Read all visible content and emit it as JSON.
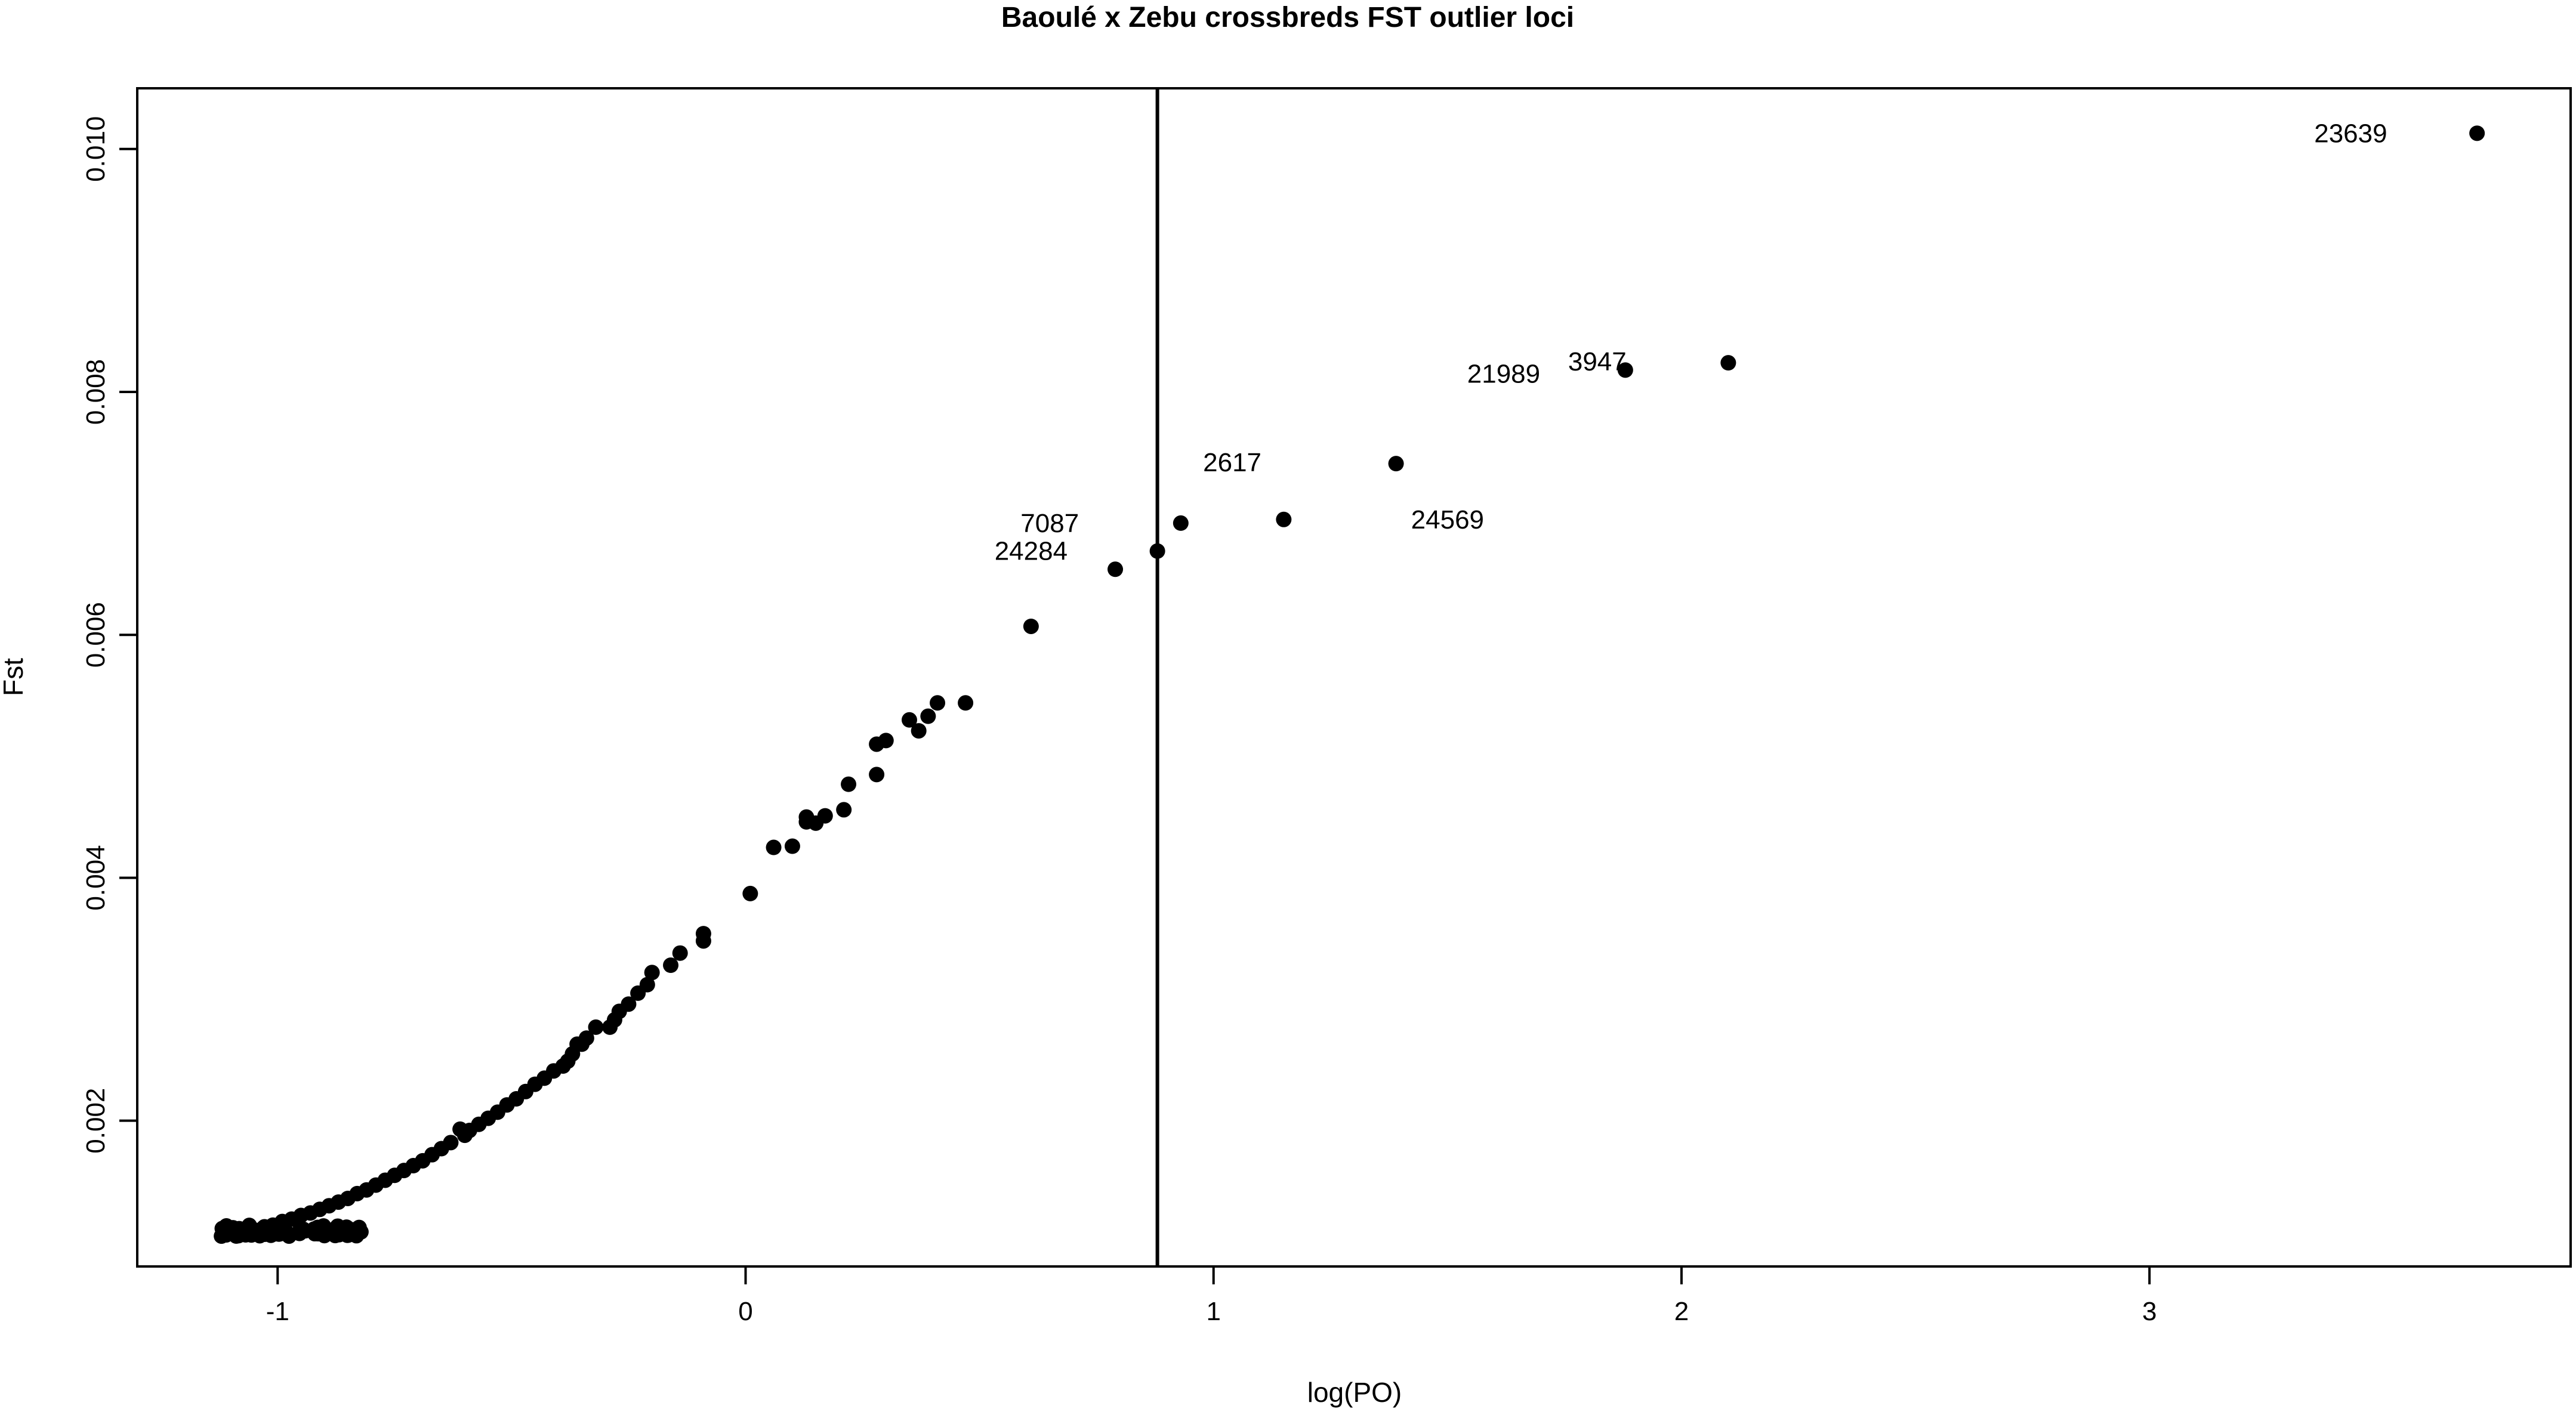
{
  "chart_data": {
    "type": "scatter",
    "title": "Baoulé x Zebu crossbreds FST outlier loci",
    "xlabel": "log(PO)",
    "ylabel": "Fst",
    "xlim": [
      -1.3,
      3.9
    ],
    "ylim": [
      0.0008,
      0.0105
    ],
    "xticks": [
      -1,
      0,
      1,
      2,
      3
    ],
    "xtick_labels": [
      "-1",
      "0",
      "1",
      "2",
      "3"
    ],
    "yticks": [
      0.002,
      0.004,
      0.006,
      0.008,
      0.01
    ],
    "ytick_labels": [
      "0.002",
      "0.004",
      "0.006",
      "0.008",
      "0.010"
    ],
    "grid": false,
    "threshold_line": {
      "orientation": "vertical",
      "x": 0.88
    },
    "labeled_points": [
      {
        "label": "23639",
        "x": 3.7,
        "y": 0.01013
      },
      {
        "label": "3947",
        "x": 2.1,
        "y": 0.00824
      },
      {
        "label": "21989",
        "x": 1.88,
        "y": 0.00818
      },
      {
        "label": "2617",
        "x": 1.39,
        "y": 0.00741
      },
      {
        "label": "24569",
        "x": 1.15,
        "y": 0.00695
      },
      {
        "label": "7087",
        "x": 0.93,
        "y": 0.00692
      },
      {
        "label": "24284",
        "x": 0.88,
        "y": 0.00669
      }
    ],
    "points": [
      [
        0.79,
        0.00654
      ],
      [
        0.61,
        0.00607
      ],
      [
        0.47,
        0.00544
      ],
      [
        0.41,
        0.00544
      ],
      [
        0.39,
        0.00533
      ],
      [
        0.37,
        0.00521
      ],
      [
        0.35,
        0.0053
      ],
      [
        0.3,
        0.00513
      ],
      [
        0.28,
        0.0051
      ],
      [
        0.28,
        0.00485
      ],
      [
        0.22,
        0.00477
      ],
      [
        0.21,
        0.00456
      ],
      [
        0.17,
        0.00451
      ],
      [
        0.15,
        0.00445
      ],
      [
        0.13,
        0.0045
      ],
      [
        0.13,
        0.00446
      ],
      [
        0.1,
        0.00426
      ],
      [
        0.06,
        0.00425
      ],
      [
        0.01,
        0.00387
      ],
      [
        -0.09,
        0.00354
      ],
      [
        -0.09,
        0.00348
      ],
      [
        -0.14,
        0.00338
      ],
      [
        -0.16,
        0.00328
      ],
      [
        -0.2,
        0.00322
      ],
      [
        -0.21,
        0.00312
      ],
      [
        -0.23,
        0.00305
      ],
      [
        -0.25,
        0.00296
      ],
      [
        -0.27,
        0.0029
      ],
      [
        -0.28,
        0.00283
      ],
      [
        -0.29,
        0.00277
      ],
      [
        -0.32,
        0.00277
      ],
      [
        -0.34,
        0.00268
      ],
      [
        -0.35,
        0.00263
      ],
      [
        -0.36,
        0.00263
      ],
      [
        -0.37,
        0.00255
      ],
      [
        -0.38,
        0.00249
      ],
      [
        -0.39,
        0.00245
      ],
      [
        -0.41,
        0.00241
      ],
      [
        -0.43,
        0.00235
      ],
      [
        -0.45,
        0.0023
      ],
      [
        -0.47,
        0.00224
      ],
      [
        -0.49,
        0.00218
      ],
      [
        -0.51,
        0.00213
      ],
      [
        -0.53,
        0.00207
      ],
      [
        -0.55,
        0.00202
      ],
      [
        -0.57,
        0.00197
      ],
      [
        -0.59,
        0.00192
      ],
      [
        -0.6,
        0.00188
      ],
      [
        -0.61,
        0.00193
      ],
      [
        -0.63,
        0.00182
      ],
      [
        -0.65,
        0.00177
      ],
      [
        -0.67,
        0.00172
      ],
      [
        -0.69,
        0.00167
      ],
      [
        -0.71,
        0.00163
      ],
      [
        -0.73,
        0.00159
      ],
      [
        -0.75,
        0.00155
      ],
      [
        -0.77,
        0.00151
      ],
      [
        -0.79,
        0.00147
      ],
      [
        -0.81,
        0.00143
      ],
      [
        -0.83,
        0.0014
      ],
      [
        -0.85,
        0.00136
      ],
      [
        -0.87,
        0.00133
      ],
      [
        -0.89,
        0.0013
      ],
      [
        -0.91,
        0.00127
      ],
      [
        -0.93,
        0.00124
      ],
      [
        -0.95,
        0.00122
      ],
      [
        -0.97,
        0.00119
      ],
      [
        -0.99,
        0.00117
      ],
      [
        -1.01,
        0.00114
      ],
      [
        -1.03,
        0.00112
      ],
      [
        -1.05,
        0.0011
      ],
      [
        -1.07,
        0.00108
      ],
      [
        -1.09,
        0.00107
      ],
      [
        -1.11,
        0.00106
      ],
      [
        -1.12,
        0.00105
      ]
    ]
  }
}
